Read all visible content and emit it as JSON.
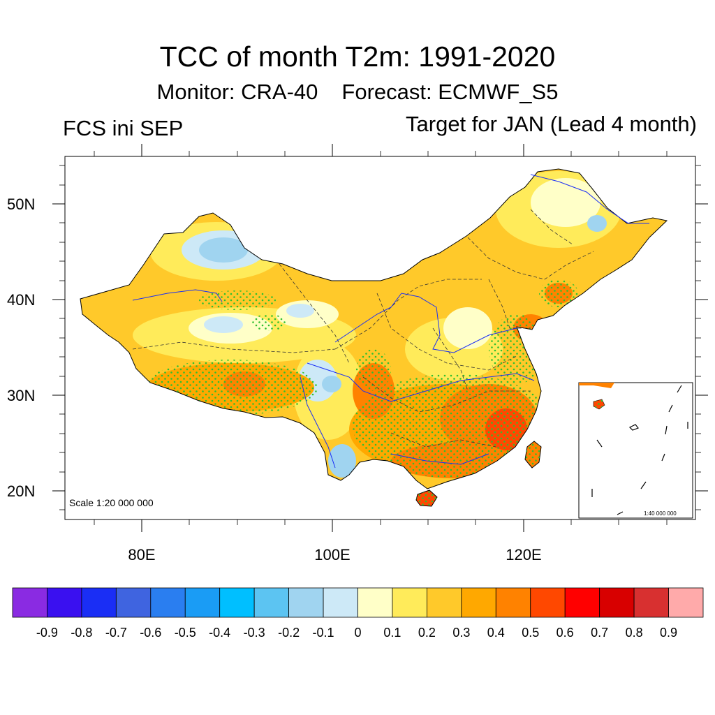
{
  "header": {
    "title": "TCC of month T2m: 1991-2020",
    "monitor": "Monitor: CRA-40",
    "forecast": "Forecast: ECMWF_S5",
    "left_label": "FCS ini SEP",
    "right_label": "Target for JAN (Lead 4 month)"
  },
  "map": {
    "y_ticks": [
      "50N",
      "40N",
      "30N",
      "20N"
    ],
    "x_ticks": [
      "80E",
      "100E",
      "120E"
    ],
    "lat_range": [
      17,
      55
    ],
    "lon_range": [
      72,
      138
    ],
    "scale_text": "Scale 1:20 000 000",
    "inset_scale_text": "1:40 000 000",
    "significance_marker_color": "#2fbf2f"
  },
  "colorbar": {
    "labels": [
      "-0.9",
      "-0.8",
      "-0.7",
      "-0.6",
      "-0.5",
      "-0.4",
      "-0.3",
      "-0.2",
      "-0.1",
      "0",
      "0.1",
      "0.2",
      "0.3",
      "0.4",
      "0.5",
      "0.6",
      "0.7",
      "0.8",
      "0.9"
    ],
    "colors": [
      "#8a2be2",
      "#3a10f0",
      "#1a2ef5",
      "#3f64e0",
      "#2a7ef0",
      "#1a9cf5",
      "#00bfff",
      "#5cc4f2",
      "#a0d4f0",
      "#cde9f7",
      "#ffffc8",
      "#ffeb5a",
      "#ffc92a",
      "#ffa800",
      "#ff8200",
      "#ff4800",
      "#ff0000",
      "#d80000",
      "#d83030",
      "#ffaaaa"
    ]
  }
}
